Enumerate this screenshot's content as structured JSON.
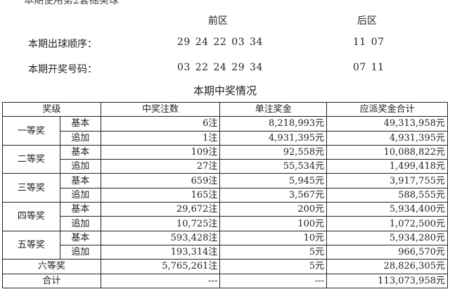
{
  "note": "本期使用第2套摇奖球",
  "front_label": "前区",
  "back_label": "后区",
  "draw_order": {
    "label": "本期出球顺序：",
    "front": "29 24 22 03 34",
    "back": "11 07"
  },
  "draw_result": {
    "label": "本期开奖号码：",
    "front": "03 22 24 29 34",
    "back": "07 11"
  },
  "table_title": "本期中奖情况",
  "headers": [
    "奖级",
    "中奖注数",
    "单注奖金",
    "应派奖金合计"
  ],
  "tiers": [
    {
      "name": "一等奖",
      "rows": [
        {
          "type": "基本",
          "count": "6注",
          "prize": "8,218,993元",
          "total": "49,313,958元"
        },
        {
          "type": "追加",
          "count": "1注",
          "prize": "4,931,395元",
          "total": "4,931,395元"
        }
      ]
    },
    {
      "name": "二等奖",
      "rows": [
        {
          "type": "基本",
          "count": "109注",
          "prize": "92,558元",
          "total": "10,088,822元"
        },
        {
          "type": "追加",
          "count": "27注",
          "prize": "55,534元",
          "total": "1,499,418元"
        }
      ]
    },
    {
      "name": "三等奖",
      "rows": [
        {
          "type": "基本",
          "count": "659注",
          "prize": "5,945元",
          "total": "3,917,755元"
        },
        {
          "type": "追加",
          "count": "165注",
          "prize": "3,567元",
          "total": "588,555元"
        }
      ]
    },
    {
      "name": "四等奖",
      "rows": [
        {
          "type": "基本",
          "count": "29,672注",
          "prize": "200元",
          "total": "5,934,400元"
        },
        {
          "type": "追加",
          "count": "10,725注",
          "prize": "100元",
          "total": "1,072,500元"
        }
      ]
    },
    {
      "name": "五等奖",
      "rows": [
        {
          "type": "基本",
          "count": "593,428注",
          "prize": "10元",
          "total": "5,934,280元"
        },
        {
          "type": "追加",
          "count": "193,314注",
          "prize": "5元",
          "total": "966,570元"
        }
      ]
    }
  ],
  "sixth": {
    "name": "六等奖",
    "count": "5,765,261注",
    "prize": "5元",
    "total": "28,826,305元"
  },
  "sum": {
    "name": "合计",
    "count": "---",
    "prize": "---",
    "total": "113,073,958元"
  }
}
